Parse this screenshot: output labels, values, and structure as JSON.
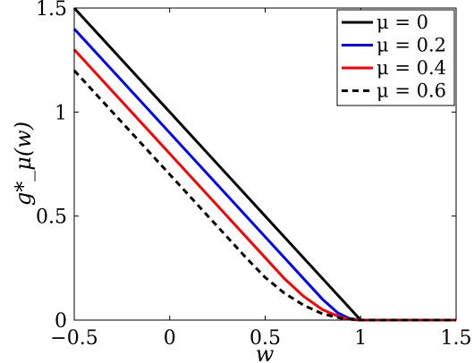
{
  "chart_data": {
    "type": "line",
    "title": "",
    "xlabel": "w",
    "ylabel": "g*_μ(w)",
    "xlim": [
      -0.5,
      1.5
    ],
    "ylim": [
      0,
      1.5
    ],
    "xticks": [
      -0.5,
      0,
      0.5,
      1,
      1.5
    ],
    "xtick_labels": [
      "−0.5",
      "0",
      "0.5",
      "1",
      "1.5"
    ],
    "yticks": [
      0,
      0.5,
      1,
      1.5
    ],
    "ytick_labels": [
      "0",
      "0.5",
      "1",
      "1.5"
    ],
    "grid": false,
    "legend_position": "top-right",
    "series": [
      {
        "name": "μ = 0",
        "color": "#000000",
        "dash": "solid",
        "x": [
          -0.5,
          0,
          0.5,
          1,
          1.5
        ],
        "y": [
          1.5,
          1.0,
          0.5,
          0,
          0
        ]
      },
      {
        "name": "μ = 0.2",
        "color": "#0000ff",
        "dash": "solid",
        "x": [
          -0.5,
          0,
          0.5,
          0.8,
          0.88,
          0.94,
          1,
          1.5
        ],
        "y": [
          1.4,
          0.9,
          0.4,
          0.1,
          0.035,
          0.008,
          0,
          0
        ]
      },
      {
        "name": "μ = 0.4",
        "color": "#ff0000",
        "dash": "solid",
        "x": [
          -0.5,
          0,
          0.5,
          0.6,
          0.7,
          0.8,
          0.9,
          0.96,
          1,
          1.5
        ],
        "y": [
          1.3,
          0.8,
          0.3,
          0.2,
          0.115,
          0.05,
          0.012,
          0.002,
          0,
          0
        ]
      },
      {
        "name": "μ = 0.6",
        "color": "#000000",
        "dash": "dashed",
        "x": [
          -0.5,
          0,
          0.3,
          0.4,
          0.5,
          0.6,
          0.7,
          0.8,
          0.9,
          1,
          1.5
        ],
        "y": [
          1.2,
          0.7,
          0.4,
          0.3,
          0.205,
          0.13,
          0.072,
          0.03,
          0.008,
          0,
          0
        ]
      }
    ]
  }
}
